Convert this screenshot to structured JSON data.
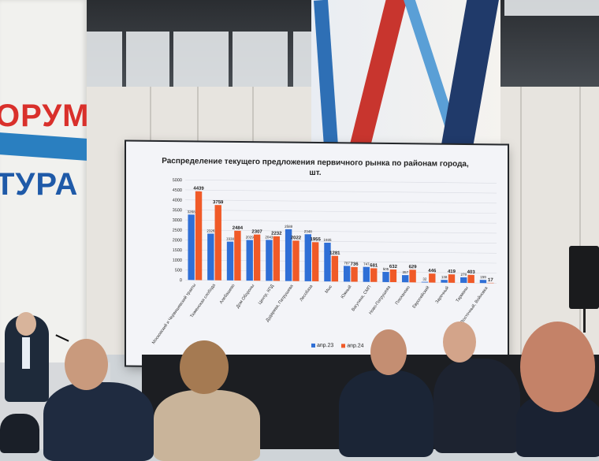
{
  "banner": {
    "line1": "ОРУМ",
    "line2": "ТУРА"
  },
  "slide": {
    "title": "Распределение текущего предложения первичного рынка по районам города, шт."
  },
  "chart_data": {
    "type": "bar",
    "title": "Распределение текущего предложения первичного рынка по районам города, шт.",
    "categories": [
      "Московский и Червишевский тракты",
      "Тюменская слобода",
      "Алебашево",
      "Дом Обороны",
      "Центр, КПД",
      "Дударева, Патрушева",
      "Лесобаза",
      "Мыс",
      "Южный",
      "Вагутина, СМП",
      "Ново-Патрушева",
      "Плеханово",
      "Европейский",
      "Заречный",
      "Тарманы",
      "Восточный, Войновка"
    ],
    "series": [
      {
        "name": "апр.23",
        "color": "#2f6fd6",
        "values": [
          3268,
          2326,
          1938,
          2029,
          2043,
          2588,
          2348,
          1935,
          787,
          747,
          505,
          357,
          32,
          138,
          279,
          159
        ]
      },
      {
        "name": "апр.24",
        "color": "#f05a28",
        "values": [
          4439,
          3759,
          2484,
          2307,
          2232,
          2022,
          1955,
          1281,
          736,
          681,
          632,
          629,
          446,
          419,
          403,
          17
        ]
      }
    ],
    "ylim": [
      0,
      5000
    ],
    "yticks": [
      0,
      500,
      1000,
      1500,
      2000,
      2500,
      3000,
      3500,
      4000,
      4500,
      5000
    ],
    "grid": true,
    "legend": "bottom"
  }
}
